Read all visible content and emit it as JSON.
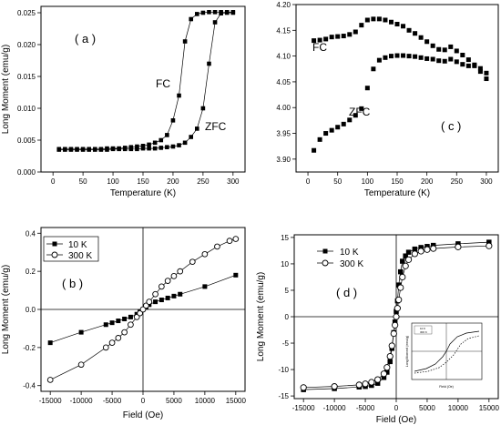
{
  "chart_data": [
    {
      "type": "line",
      "panel_label": "( a )",
      "xlabel": "Temperature (K)",
      "ylabel": "Long Moment (emu/g)",
      "xlim": [
        -20,
        320
      ],
      "ylim": [
        0,
        0.026
      ],
      "xticks": [
        0,
        50,
        100,
        150,
        200,
        250,
        300
      ],
      "yticks": [
        0.0,
        0.005,
        0.01,
        0.015,
        0.02,
        0.025
      ],
      "ytick_labels": [
        "0.000",
        "0.005",
        "0.010",
        "0.015",
        "0.020",
        "0.025"
      ],
      "series": [
        {
          "name": "FC",
          "x": [
            10,
            20,
            30,
            40,
            50,
            60,
            70,
            80,
            90,
            100,
            110,
            120,
            130,
            140,
            150,
            160,
            170,
            180,
            190,
            200,
            210,
            220,
            230,
            240,
            250,
            260,
            270,
            280,
            290,
            300
          ],
          "y": [
            0.0036,
            0.0036,
            0.0036,
            0.0036,
            0.0036,
            0.0036,
            0.0036,
            0.0036,
            0.0037,
            0.0037,
            0.0037,
            0.0038,
            0.0039,
            0.004,
            0.0041,
            0.0043,
            0.0046,
            0.005,
            0.0058,
            0.0081,
            0.012,
            0.0205,
            0.024,
            0.0248,
            0.025,
            0.0251,
            0.0251,
            0.0251,
            0.0251,
            0.0251
          ]
        },
        {
          "name": "ZFC",
          "x": [
            10,
            20,
            30,
            40,
            50,
            60,
            70,
            80,
            90,
            100,
            110,
            120,
            130,
            140,
            150,
            160,
            170,
            180,
            190,
            200,
            210,
            220,
            230,
            240,
            250,
            260,
            270,
            280,
            290,
            300
          ],
          "y": [
            0.0035,
            0.0035,
            0.0035,
            0.0035,
            0.0035,
            0.0035,
            0.0035,
            0.0035,
            0.0035,
            0.0036,
            0.0036,
            0.0036,
            0.0036,
            0.0036,
            0.0037,
            0.0037,
            0.0037,
            0.0038,
            0.0039,
            0.004,
            0.0042,
            0.0046,
            0.0055,
            0.0068,
            0.01,
            0.017,
            0.0235,
            0.0249,
            0.025,
            0.025
          ]
        }
      ]
    },
    {
      "type": "line",
      "panel_label": "( c )",
      "xlabel": "Temperature (K)",
      "ylabel": "",
      "xlim": [
        -20,
        320
      ],
      "ylim": [
        3.875,
        4.2
      ],
      "xticks": [
        0,
        50,
        100,
        150,
        200,
        250,
        300
      ],
      "yticks": [
        3.9,
        3.95,
        4.0,
        4.05,
        4.1,
        4.15,
        4.2
      ],
      "ytick_labels": [
        "3.90",
        "3.95",
        "4.00",
        "4.05",
        "4.10",
        "4.15",
        "4.20"
      ],
      "series": [
        {
          "name": "FC",
          "x": [
            10,
            20,
            30,
            40,
            50,
            60,
            70,
            80,
            90,
            100,
            110,
            120,
            130,
            140,
            150,
            160,
            170,
            180,
            190,
            200,
            210,
            220,
            230,
            240,
            250,
            260,
            270,
            280,
            290,
            300
          ],
          "y": [
            4.13,
            4.131,
            4.133,
            4.137,
            4.138,
            4.139,
            4.142,
            4.147,
            4.16,
            4.17,
            4.172,
            4.172,
            4.17,
            4.166,
            4.162,
            4.158,
            4.15,
            4.144,
            4.136,
            4.128,
            4.12,
            4.113,
            4.112,
            4.118,
            4.11,
            4.102,
            4.093,
            4.083,
            4.07,
            4.056
          ]
        },
        {
          "name": "ZFC",
          "x": [
            10,
            20,
            30,
            40,
            50,
            60,
            70,
            80,
            90,
            100,
            110,
            120,
            130,
            140,
            150,
            160,
            170,
            180,
            190,
            200,
            210,
            220,
            230,
            240,
            250,
            260,
            270,
            280,
            290,
            300
          ],
          "y": [
            3.917,
            3.938,
            3.95,
            3.956,
            3.962,
            3.968,
            3.976,
            3.985,
            3.998,
            4.038,
            4.075,
            4.092,
            4.097,
            4.1,
            4.101,
            4.101,
            4.1,
            4.099,
            4.097,
            4.095,
            4.094,
            4.091,
            4.09,
            4.094,
            4.089,
            4.084,
            4.081,
            4.081,
            4.076,
            4.067
          ]
        }
      ]
    },
    {
      "type": "scatter",
      "panel_label": "( b )",
      "xlabel": "Field (Oe)",
      "ylabel": "Long Moment (emu/g)",
      "xlim": [
        -16500,
        16500
      ],
      "ylim": [
        -0.43,
        0.43
      ],
      "xticks": [
        -15000,
        -10000,
        -5000,
        0,
        5000,
        10000,
        15000
      ],
      "yticks": [
        -0.4,
        -0.2,
        0.0,
        0.2,
        0.4
      ],
      "ytick_labels": [
        "-0.4",
        "-0.2",
        "0.0",
        "0.2",
        "0.4"
      ],
      "legend_position": "top-left",
      "series": [
        {
          "name": "10 K",
          "marker": "filled-square",
          "x": [
            -15000,
            -10000,
            -6000,
            -5000,
            -4000,
            -3000,
            -2000,
            -1000,
            -500,
            0,
            500,
            1000,
            2000,
            3000,
            4000,
            5000,
            6000,
            10000,
            15000
          ],
          "y": [
            -0.175,
            -0.12,
            -0.08,
            -0.07,
            -0.06,
            -0.05,
            -0.04,
            -0.025,
            -0.012,
            0.0,
            0.012,
            0.025,
            0.04,
            0.05,
            0.06,
            0.07,
            0.08,
            0.12,
            0.18
          ]
        },
        {
          "name": "300 K",
          "marker": "open-circle",
          "x": [
            -15000,
            -10000,
            -6000,
            -5000,
            -4000,
            -3000,
            -2000,
            -1000,
            -500,
            0,
            500,
            1000,
            2000,
            3000,
            4000,
            5000,
            6000,
            8000,
            10000,
            12000,
            14000,
            15000
          ],
          "y": [
            -0.37,
            -0.29,
            -0.2,
            -0.175,
            -0.15,
            -0.12,
            -0.08,
            -0.04,
            -0.02,
            0.0,
            0.02,
            0.04,
            0.08,
            0.12,
            0.15,
            0.175,
            0.2,
            0.25,
            0.29,
            0.33,
            0.36,
            0.37
          ]
        }
      ]
    },
    {
      "type": "scatter",
      "panel_label": "( d )",
      "xlabel": "Field (Oe)",
      "ylabel": "Long Moment (emu/g)",
      "xlim": [
        -16500,
        16500
      ],
      "ylim": [
        -15.5,
        15.5
      ],
      "xticks": [
        -15000,
        -10000,
        -5000,
        0,
        5000,
        10000,
        15000
      ],
      "yticks": [
        -15,
        -10,
        -5,
        0,
        5,
        10,
        15
      ],
      "ytick_labels": [
        "-15",
        "-10",
        "-5",
        "0",
        "5",
        "10",
        "15"
      ],
      "legend_position": "top-left",
      "has_inset": true,
      "series": [
        {
          "name": "10 K",
          "marker": "filled-square",
          "x": [
            -15000,
            -10000,
            -6000,
            -5000,
            -4000,
            -3000,
            -2000,
            -1500,
            -1000,
            -700,
            -400,
            -200,
            0,
            200,
            400,
            700,
            1000,
            1500,
            2000,
            3000,
            4000,
            5000,
            6000,
            10000,
            15000
          ],
          "y": [
            -13.8,
            -13.6,
            -13.3,
            -13.2,
            -13.0,
            -12.6,
            -11.5,
            -10.5,
            -8.5,
            -6.0,
            -3.0,
            -1.0,
            1.0,
            3.0,
            6.0,
            8.5,
            10.5,
            11.5,
            12.2,
            12.8,
            13.1,
            13.3,
            13.5,
            13.8,
            14.1
          ]
        },
        {
          "name": "300 K",
          "marker": "open-circle",
          "x": [
            -15000,
            -10000,
            -6000,
            -5000,
            -4000,
            -3000,
            -2000,
            -1500,
            -1000,
            -700,
            -400,
            -200,
            0,
            200,
            400,
            700,
            1000,
            1500,
            2000,
            3000,
            4000,
            5000,
            6000,
            10000,
            15000
          ],
          "y": [
            -13.4,
            -13.2,
            -12.9,
            -12.7,
            -12.4,
            -11.9,
            -10.8,
            -9.6,
            -7.5,
            -5.5,
            -3.2,
            -1.6,
            0.0,
            1.6,
            3.2,
            5.5,
            7.5,
            9.6,
            10.8,
            11.9,
            12.4,
            12.7,
            12.9,
            13.2,
            13.4
          ]
        }
      ],
      "inset_legend": [
        "10 K",
        "300 K"
      ],
      "inset_xlabel": "Field (Oe)",
      "inset_ylabel": "Long Moment (emu/g)"
    }
  ]
}
